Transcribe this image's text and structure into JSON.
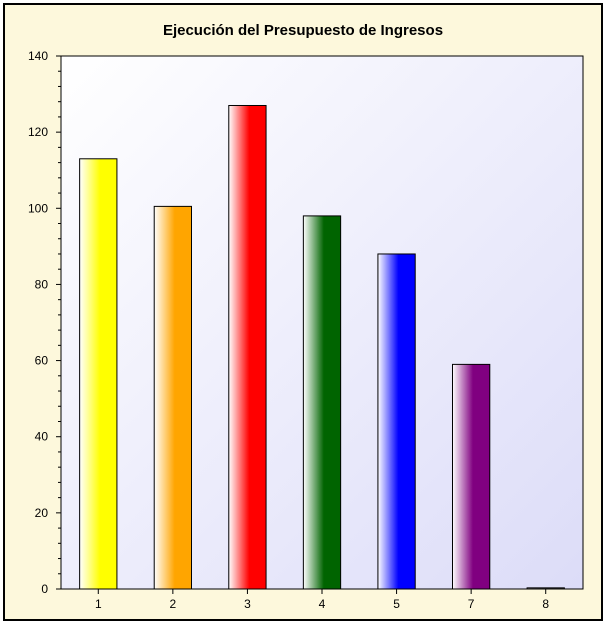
{
  "chart_data": {
    "type": "bar",
    "title": "Ejecución del Presupuesto de Ingresos",
    "xlabel": "",
    "ylabel": "",
    "categories": [
      "1",
      "2",
      "3",
      "4",
      "5",
      "7",
      "8"
    ],
    "values": [
      113,
      100.5,
      127,
      98,
      88,
      59,
      0.3
    ],
    "bar_colors": [
      "#ffff00",
      "#ffa500",
      "#ff0000",
      "#006400",
      "#0000ff",
      "#800080",
      "#808080"
    ],
    "ylim": [
      0,
      140
    ],
    "yticks": [
      0,
      20,
      40,
      60,
      80,
      100,
      120,
      140
    ],
    "grid": false,
    "legend": "none"
  },
  "colors": {
    "frame_background": "#fdf8dc",
    "plot_gradient_start": "#ffffff",
    "plot_gradient_end": "#dcdcf8"
  }
}
